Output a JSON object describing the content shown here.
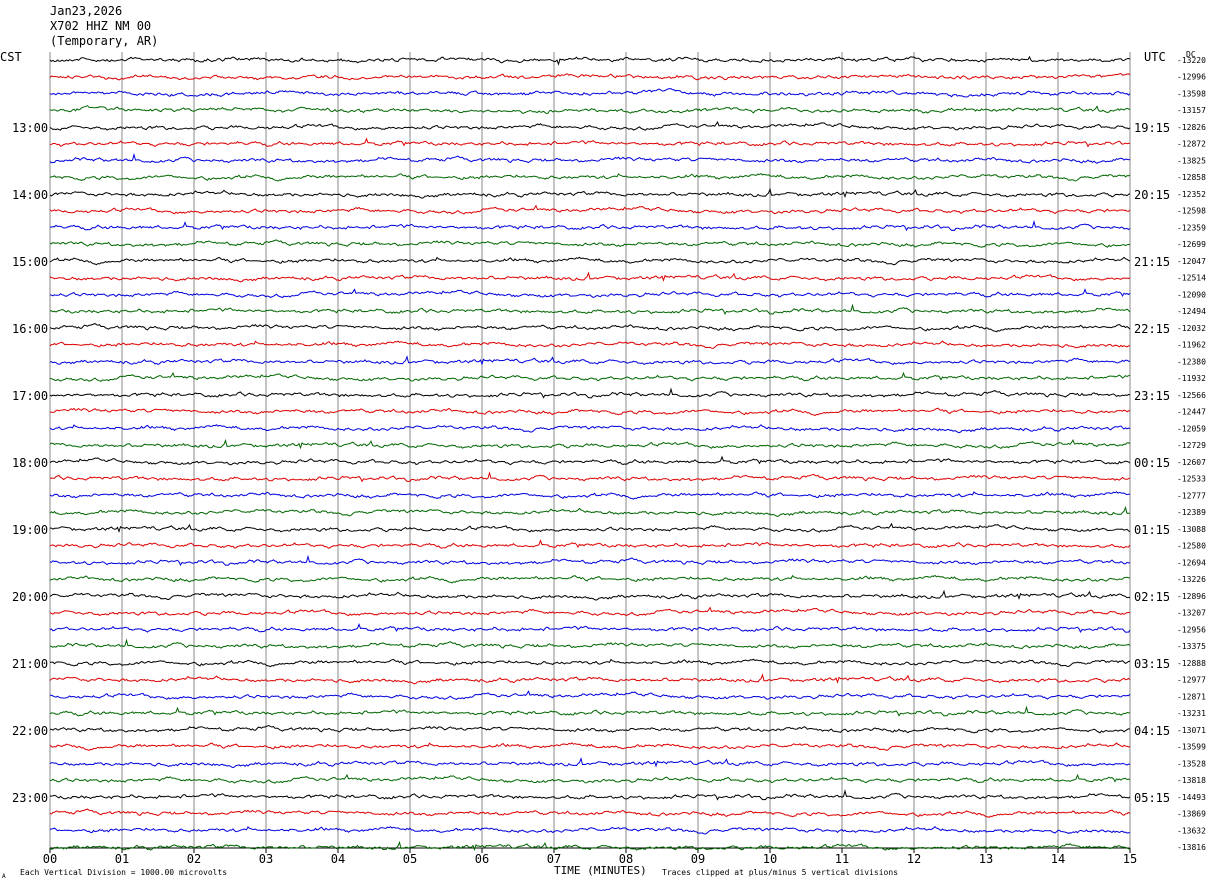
{
  "header": {
    "date": "Jan23,2026",
    "station": "X702 HHZ NM 00",
    "location": "(Temporary, AR)"
  },
  "labels": {
    "left_tz": "CST",
    "right_tz": "UTC",
    "dc": "DC",
    "x_axis_title": "TIME (MINUTES)",
    "footnote_left": "Each Vertical Division = 1000.00 microvolts",
    "footnote_right": "Traces clipped at plus/minus 5 vertical divisions",
    "corner_mark": "A"
  },
  "colors": {
    "trace_cycle": [
      "#000000",
      "#dd0000",
      "#0000dd",
      "#006600"
    ],
    "grid": "#888888",
    "text": "#000000"
  },
  "chart_data": {
    "type": "line",
    "x_ticks": [
      "00",
      "01",
      "02",
      "03",
      "04",
      "05",
      "06",
      "07",
      "08",
      "09",
      "10",
      "11",
      "12",
      "13",
      "14",
      "15"
    ],
    "xlim": [
      0,
      15
    ],
    "rows_per_hour": 4,
    "left_hour_labels": [
      "13:00",
      "14:00",
      "15:00",
      "16:00",
      "17:00",
      "18:00",
      "19:00",
      "20:00",
      "21:00",
      "22:00",
      "23:00"
    ],
    "right_hour_labels": [
      "19:15",
      "20:15",
      "21:15",
      "22:15",
      "23:15",
      "00:15",
      "01:15",
      "02:15",
      "03:15",
      "04:15",
      "05:15"
    ],
    "dc_offsets": [
      "-13220",
      "-12996",
      "-13598",
      "-13157",
      "-12826",
      "-12872",
      "-13825",
      "-12858",
      "-12352",
      "-12598",
      "-12359",
      "-12699",
      "-12047",
      "-12514",
      "-12090",
      "-12494",
      "-12032",
      "-11962",
      "-12380",
      "-11932",
      "-12566",
      "-12447",
      "-12059",
      "-12729",
      "-12607",
      "-12533",
      "-12777",
      "-12389",
      "-13088",
      "-12580",
      "-12694",
      "-13226",
      "-12896",
      "-13207",
      "-12956",
      "-13375",
      "-12888",
      "-12977",
      "-12871",
      "-13231",
      "-13071",
      "-13599",
      "-13528",
      "-13818",
      "-14493",
      "-13869",
      "-13632",
      "-13816"
    ]
  }
}
